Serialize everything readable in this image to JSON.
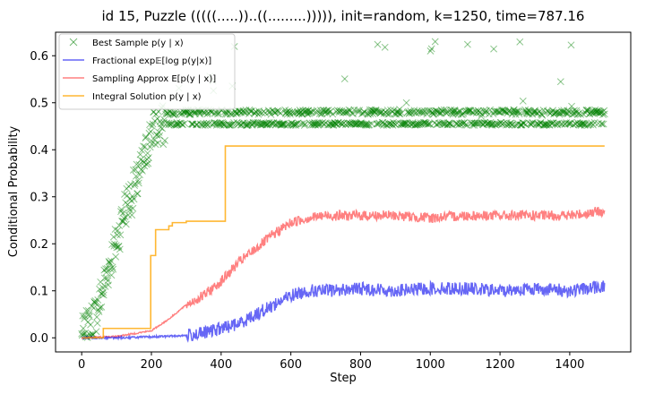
{
  "chart_data": {
    "type": "line",
    "title": "id 15, Puzzle (((((.....))..((.........))))), init=random, k=1250, time=787.16",
    "xlabel": "Step",
    "ylabel": "Conditional Probability",
    "xlim": [
      -75,
      1575
    ],
    "ylim": [
      -0.03,
      0.65
    ],
    "xticks": [
      0,
      200,
      400,
      600,
      800,
      1000,
      1200,
      1400
    ],
    "yticks": [
      0.0,
      0.1,
      0.2,
      0.3,
      0.4,
      0.5,
      0.6
    ],
    "xtick_labels": [
      "0",
      "200",
      "400",
      "600",
      "800",
      "1000",
      "1200",
      "1400"
    ],
    "ytick_labels": [
      "0.0",
      "0.1",
      "0.2",
      "0.3",
      "0.4",
      "0.5",
      "0.6"
    ],
    "grid": false,
    "legend_position": "upper-left",
    "legend": [
      "Best Sample p(y | x)",
      "Fractional exp𝔼[log p(y|x)]",
      "Sampling Approx E[p(y | x)]",
      "Integral Solution p(y | x)"
    ],
    "series": [
      {
        "name": "Best Sample p(y | x)",
        "kind": "scatter",
        "marker": "x",
        "color": "#008000",
        "x": [
          0,
          20,
          40,
          60,
          80,
          100,
          120,
          140,
          160,
          180,
          200,
          220,
          250,
          300,
          350,
          400,
          450,
          500,
          600,
          700,
          800,
          900,
          1000,
          1100,
          1200,
          1300,
          1400,
          1500
        ],
        "y": [
          0.0,
          0.02,
          0.05,
          0.1,
          0.16,
          0.2,
          0.27,
          0.3,
          0.33,
          0.38,
          0.44,
          0.45,
          0.45,
          0.455,
          0.46,
          0.47,
          0.47,
          0.475,
          0.48,
          0.48,
          0.48,
          0.48,
          0.48,
          0.48,
          0.48,
          0.48,
          0.48,
          0.48
        ],
        "levels": [
          0.455,
          0.48,
          0.62
        ]
      },
      {
        "name": "Fractional exp𝔼[log p(y|x)]",
        "kind": "line",
        "color": "#0000ee",
        "x": [
          0,
          100,
          200,
          300,
          350,
          400,
          450,
          500,
          550,
          600,
          650,
          700,
          800,
          900,
          1000,
          1100,
          1200,
          1300,
          1400,
          1500
        ],
        "y": [
          0.0,
          0.0,
          0.002,
          0.005,
          0.01,
          0.02,
          0.03,
          0.05,
          0.07,
          0.09,
          0.1,
          0.1,
          0.105,
          0.1,
          0.105,
          0.105,
          0.1,
          0.105,
          0.1,
          0.11
        ]
      },
      {
        "name": "Sampling Approx E[p(y | x)]",
        "kind": "line",
        "color": "#ff2b2b",
        "x": [
          0,
          100,
          200,
          250,
          300,
          350,
          400,
          450,
          500,
          550,
          600,
          650,
          700,
          800,
          900,
          1000,
          1100,
          1200,
          1300,
          1400,
          1500
        ],
        "y": [
          0.0,
          0.003,
          0.015,
          0.04,
          0.07,
          0.09,
          0.12,
          0.16,
          0.19,
          0.22,
          0.245,
          0.255,
          0.26,
          0.26,
          0.26,
          0.255,
          0.26,
          0.26,
          0.26,
          0.26,
          0.27
        ]
      },
      {
        "name": "Integral Solution p(y | x)",
        "kind": "step",
        "color": "#ffa500",
        "x": [
          0,
          62,
          198,
          212,
          235,
          250,
          260,
          288,
          300,
          412,
          1500
        ],
        "y": [
          0.0,
          0.02,
          0.175,
          0.23,
          0.23,
          0.238,
          0.245,
          0.245,
          0.248,
          0.408,
          0.408
        ]
      }
    ]
  }
}
